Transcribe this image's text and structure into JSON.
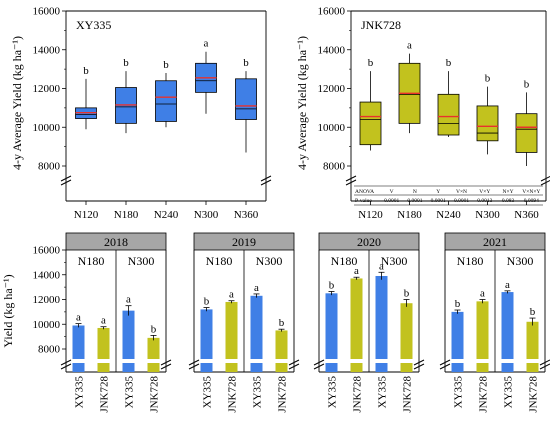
{
  "colors": {
    "blue": "#3f7fe6",
    "olive": "#c2c21e",
    "median": "#e8322d",
    "panel_header": "#a6a6a6"
  },
  "chart_data": [
    {
      "id": "xy335_box",
      "type": "box",
      "panel_label": "XY335",
      "ylabel": "4-y Average Yield (kg ha⁻¹)",
      "ylim": [
        6000,
        16000
      ],
      "yticks": [
        "8000",
        "10000",
        "12000",
        "14000",
        "16000"
      ],
      "axis_break": true,
      "categories": [
        "N120",
        "N180",
        "N240",
        "N300",
        "N360"
      ],
      "boxes": [
        {
          "min": 9900,
          "q1": 10450,
          "median": 10650,
          "mean": 10750,
          "q3": 11000,
          "max": 12500,
          "letter": "b"
        },
        {
          "min": 9700,
          "q1": 10200,
          "median": 11050,
          "mean": 11150,
          "q3": 12050,
          "max": 12900,
          "letter": "b"
        },
        {
          "min": 10000,
          "q1": 10300,
          "median": 11200,
          "mean": 11550,
          "q3": 12400,
          "max": 12800,
          "letter": "b"
        },
        {
          "min": 10700,
          "q1": 11800,
          "median": 12400,
          "mean": 12550,
          "q3": 13300,
          "max": 13900,
          "letter": "a"
        },
        {
          "min": 8700,
          "q1": 10400,
          "median": 10950,
          "mean": 11100,
          "q3": 12500,
          "max": 12900,
          "letter": "b"
        }
      ]
    },
    {
      "id": "jnk728_box",
      "type": "box",
      "panel_label": "JNK728",
      "ylabel": "4-y Average Yield (kg ha⁻¹)",
      "ylim": [
        6000,
        16000
      ],
      "yticks": [
        "8000",
        "10000",
        "12000",
        "14000",
        "16000"
      ],
      "axis_break": true,
      "categories": [
        "N120",
        "N180",
        "N240",
        "N300",
        "N360"
      ],
      "boxes": [
        {
          "min": 8800,
          "q1": 9100,
          "median": 10400,
          "mean": 10550,
          "q3": 11300,
          "max": 12900,
          "letter": "b"
        },
        {
          "min": 9700,
          "q1": 10200,
          "median": 11700,
          "mean": 11750,
          "q3": 13300,
          "max": 13800,
          "letter": "a"
        },
        {
          "min": 9500,
          "q1": 9600,
          "median": 10200,
          "mean": 10550,
          "q3": 11700,
          "max": 12900,
          "letter": "b"
        },
        {
          "min": 8600,
          "q1": 9300,
          "median": 9700,
          "mean": 10050,
          "q3": 11100,
          "max": 12100,
          "letter": "b"
        },
        {
          "min": 8000,
          "q1": 8700,
          "median": 9900,
          "mean": 10000,
          "q3": 10700,
          "max": 11800,
          "letter": "b"
        }
      ],
      "anova_table": {
        "headers": [
          "ANOVA",
          "V",
          "N",
          "Y",
          "V×N",
          "V×Y",
          "N×Y",
          "V×N×Y"
        ],
        "row": [
          "P-value",
          "0.0001",
          "0.0001",
          "0.0001",
          "0.0001",
          "0.0013",
          "0.083",
          "0.0094"
        ]
      }
    },
    {
      "id": "yearly_bars",
      "type": "bar",
      "ylabel": "Yield (kg ha⁻¹)",
      "ylim": [
        6000,
        16000
      ],
      "yticks": [
        "8000",
        "10000",
        "12000",
        "14000",
        "16000"
      ],
      "axis_break": true,
      "categories": [
        "XY335",
        "JNK728",
        "XY335",
        "JNK728"
      ],
      "groups": [
        "N180",
        "N300"
      ],
      "years": [
        {
          "year": "2018",
          "values": [
            9900,
            9700,
            11100,
            8900
          ],
          "errors": [
            150,
            100,
            400,
            200
          ],
          "letters": [
            "a",
            "a",
            "a",
            "b"
          ]
        },
        {
          "year": "2019",
          "values": [
            11200,
            11800,
            12300,
            9500
          ],
          "errors": [
            150,
            100,
            150,
            100
          ],
          "letters": [
            "b",
            "a",
            "a",
            "b"
          ]
        },
        {
          "year": "2020",
          "values": [
            12500,
            13700,
            13900,
            11700
          ],
          "errors": [
            150,
            100,
            300,
            300
          ],
          "letters": [
            "b",
            "a",
            "a",
            "b"
          ]
        },
        {
          "year": "2021",
          "values": [
            11000,
            11850,
            12600,
            10200
          ],
          "errors": [
            150,
            150,
            100,
            300
          ],
          "letters": [
            "b",
            "a",
            "a",
            "b"
          ]
        }
      ]
    }
  ]
}
